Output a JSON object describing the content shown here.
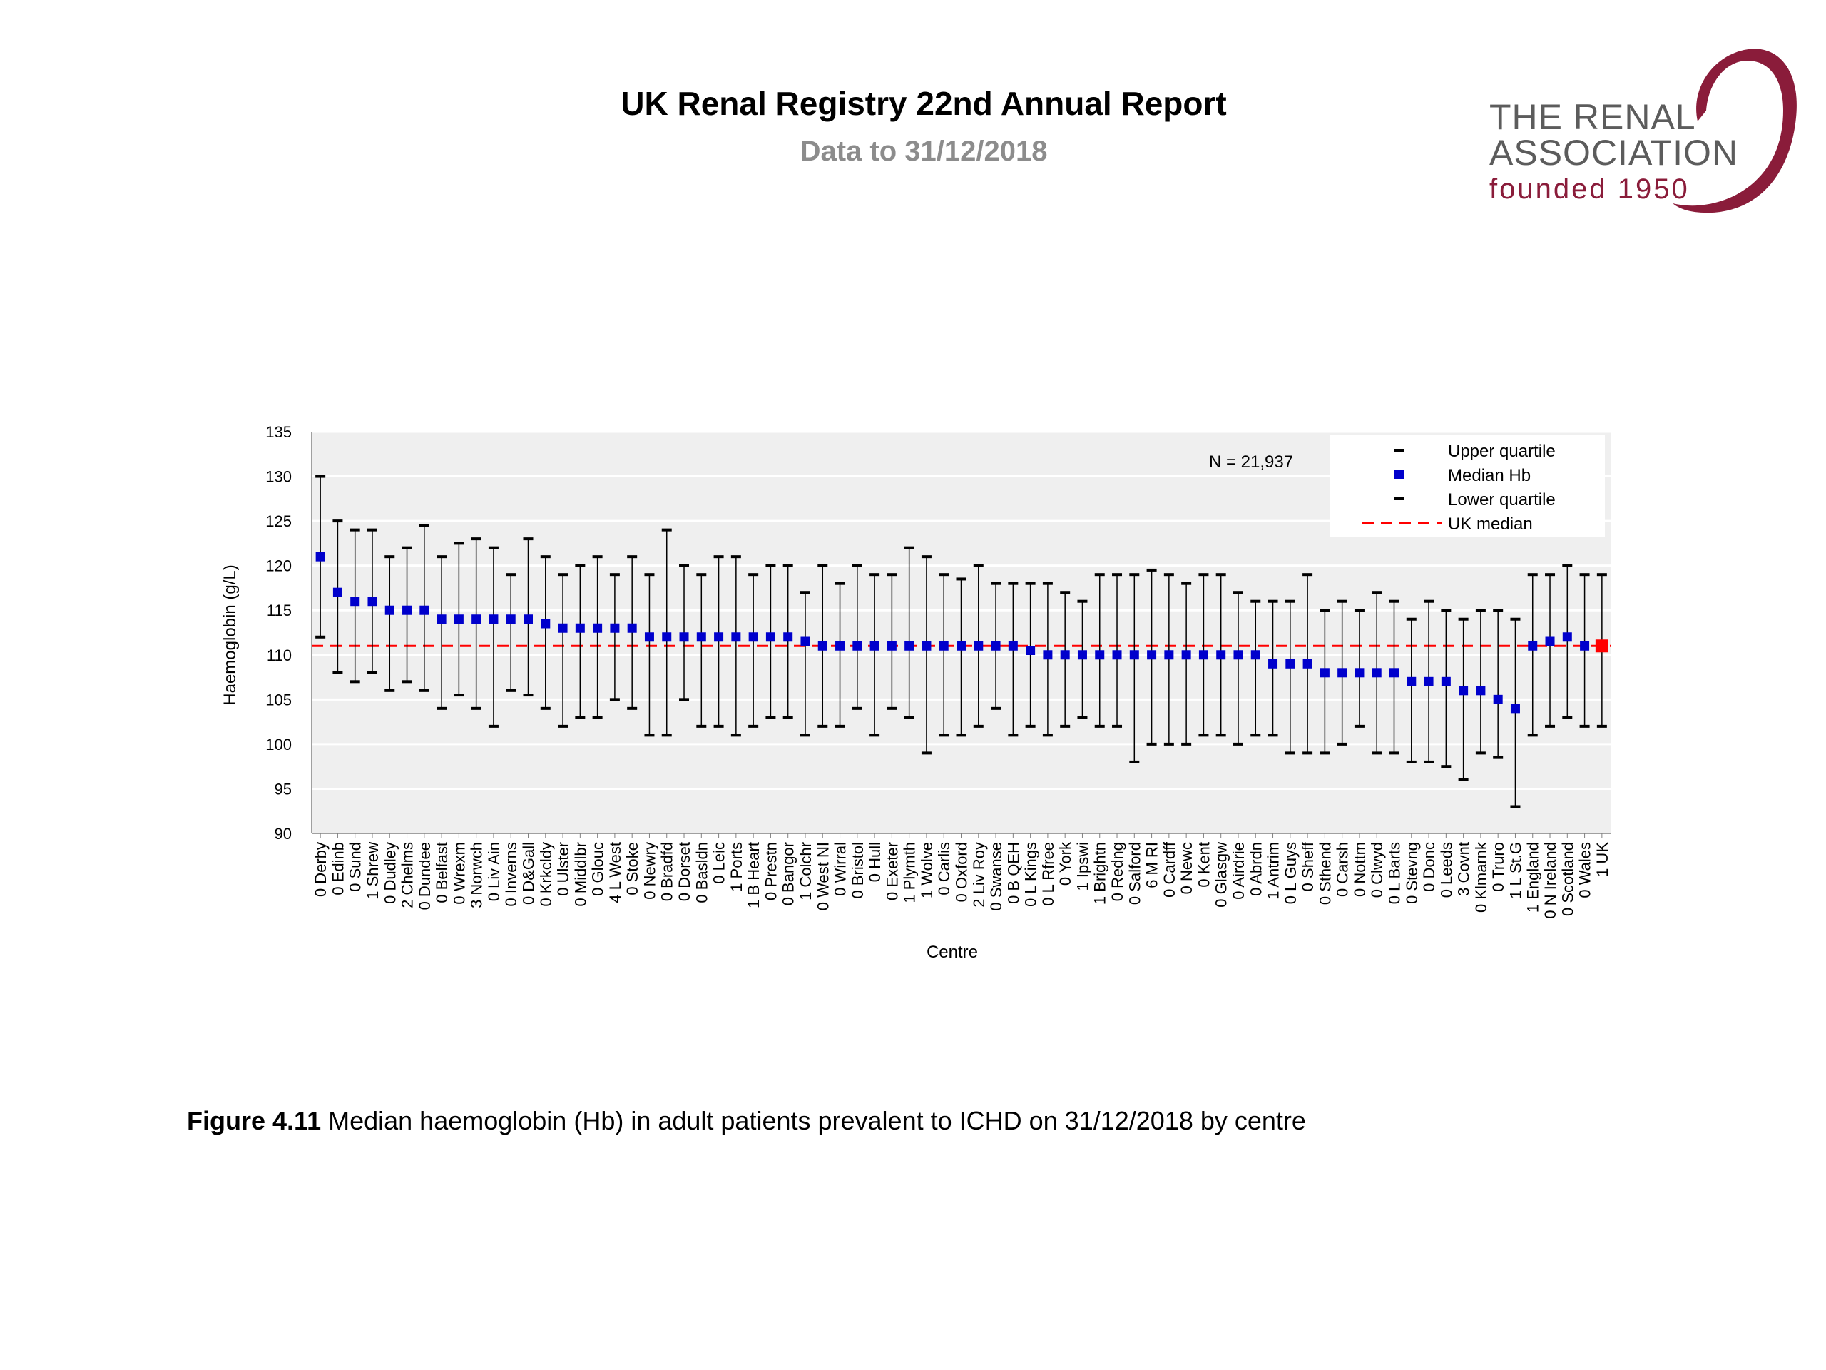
{
  "header": {
    "title": "UK Renal Registry 22nd Annual Report",
    "subtitle": "Data to 31/12/2018"
  },
  "logo": {
    "line1": "THE RENAL",
    "line2": "ASSOCIATION",
    "line3": "founded 1950",
    "color": "#8a1c3a"
  },
  "caption": {
    "label": "Figure 4.11",
    "text": " Median haemoglobin (Hb) in adult patients prevalent to ICHD on 31/12/2018 by centre"
  },
  "colors": {
    "median": "#0000cc",
    "uk_median_line": "#ff0000",
    "uk_point": "#ff0000",
    "plot_background": "#efefef",
    "whisker": "#000000"
  },
  "chart_data": {
    "type": "scatter",
    "xlabel": "Centre",
    "ylabel": "Haemoglobin (g/L)",
    "ylim": [
      90,
      135
    ],
    "yticks": [
      90,
      95,
      100,
      105,
      110,
      115,
      120,
      125,
      130,
      135
    ],
    "grid": true,
    "annotation": "N = 21,937",
    "legend": {
      "position": "top-right",
      "entries": [
        "Upper quartile",
        "Median Hb",
        "Lower quartile",
        "UK median"
      ]
    },
    "uk_median": 111,
    "categories": [
      "0 Derby",
      "0 Edinb",
      "0 Sund",
      "1 Shrew",
      "0 Dudley",
      "2 Chelms",
      "0 Dundee",
      "0 Belfast",
      "0 Wrexm",
      "3 Norwch",
      "0 Liv Ain",
      "0 Inverns",
      "0 D&Gall",
      "0 Krkcldy",
      "0 Ulster",
      "0 Middlbr",
      "0 Glouc",
      "4 L West",
      "0 Stoke",
      "0 Newry",
      "0 Bradfd",
      "0 Dorset",
      "0 Basldn",
      "0 Leic",
      "1 Ports",
      "1 B Heart",
      "0 Prestn",
      "0 Bangor",
      "1 Colchr",
      "0 West NI",
      "0 Wirral",
      "0 Bristol",
      "0 Hull",
      "0 Exeter",
      "1 Plymth",
      "1 Wolve",
      "0 Carlis",
      "0 Oxford",
      "2 Liv Roy",
      "0 Swanse",
      "0 B QEH",
      "0 L Kings",
      "0 L Rfree",
      "0 York",
      "1 Ipswi",
      "1 Brightn",
      "0 Redng",
      "0 Salford",
      "6 M RI",
      "0 Cardff",
      "0 Newc",
      "0 Kent",
      "0 Glasgw",
      "0 Airdrie",
      "0 Abrdn",
      "1 Antrim",
      "0 L Guys",
      "0 Sheff",
      "0 Sthend",
      "0 Carsh",
      "0 Nottm",
      "0 Clwyd",
      "0 L Barts",
      "0 Stevng",
      "0 Donc",
      "0 Leeds",
      "3 Covnt",
      "0 Klmarnk",
      "0 Truro",
      "1 L St.G",
      "1 England",
      "0 N Ireland",
      "0 Scotland",
      "0 Wales",
      "1 UK"
    ],
    "series": [
      {
        "name": "Median Hb",
        "values": [
          121,
          117,
          116,
          116,
          115,
          115,
          115,
          114,
          114,
          114,
          114,
          114,
          114,
          113.5,
          113,
          113,
          113,
          113,
          113,
          112,
          112,
          112,
          112,
          112,
          112,
          112,
          112,
          112,
          111.5,
          111,
          111,
          111,
          111,
          111,
          111,
          111,
          111,
          111,
          111,
          111,
          111,
          110.5,
          110,
          110,
          110,
          110,
          110,
          110,
          110,
          110,
          110,
          110,
          110,
          110,
          110,
          109,
          109,
          109,
          108,
          108,
          108,
          108,
          108,
          107,
          107,
          107,
          106,
          106,
          105,
          104,
          111,
          111.5,
          112,
          111,
          111
        ]
      },
      {
        "name": "Upper quartile",
        "values": [
          130,
          125,
          124,
          124,
          121,
          122,
          124.5,
          121,
          122.5,
          123,
          122,
          119,
          123,
          121,
          119,
          120,
          121,
          119,
          121,
          119,
          124,
          120,
          119,
          121,
          121,
          119,
          120,
          120,
          117,
          120,
          118,
          120,
          119,
          119,
          122,
          121,
          119,
          118.5,
          120,
          118,
          118,
          118,
          118,
          117,
          116,
          119,
          119,
          119,
          119.5,
          119,
          118,
          119,
          119,
          117,
          116,
          116,
          116,
          119,
          115,
          116,
          115,
          117,
          116,
          114,
          116,
          115,
          114,
          115,
          115,
          114,
          119,
          119,
          120,
          119,
          119
        ]
      },
      {
        "name": "Lower quartile",
        "values": [
          112,
          108,
          107,
          108,
          106,
          107,
          106,
          104,
          105.5,
          104,
          102,
          106,
          105.5,
          104,
          102,
          103,
          103,
          105,
          104,
          101,
          101,
          105,
          102,
          102,
          101,
          102,
          103,
          103,
          101,
          102,
          102,
          104,
          101,
          104,
          103,
          99,
          101,
          101,
          102,
          104,
          101,
          102,
          101,
          102,
          103,
          102,
          102,
          98,
          100,
          100,
          100,
          101,
          101,
          100,
          101,
          101,
          99,
          99,
          99,
          100,
          102,
          99,
          99,
          98,
          98,
          97.5,
          96,
          99,
          98.5,
          93,
          101,
          102,
          103,
          102,
          102
        ]
      }
    ]
  }
}
